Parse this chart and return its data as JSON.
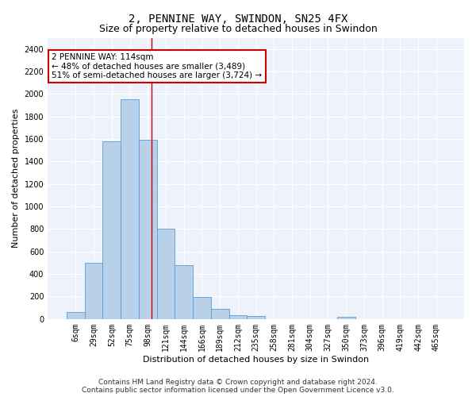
{
  "title": "2, PENNINE WAY, SWINDON, SN25 4FX",
  "subtitle": "Size of property relative to detached houses in Swindon",
  "xlabel": "Distribution of detached houses by size in Swindon",
  "ylabel": "Number of detached properties",
  "categories": [
    "6sqm",
    "29sqm",
    "52sqm",
    "75sqm",
    "98sqm",
    "121sqm",
    "144sqm",
    "166sqm",
    "189sqm",
    "212sqm",
    "235sqm",
    "258sqm",
    "281sqm",
    "304sqm",
    "327sqm",
    "350sqm",
    "373sqm",
    "396sqm",
    "419sqm",
    "442sqm",
    "465sqm"
  ],
  "values": [
    60,
    500,
    1580,
    1950,
    1590,
    800,
    480,
    195,
    90,
    35,
    25,
    0,
    0,
    0,
    0,
    20,
    0,
    0,
    0,
    0,
    0
  ],
  "bar_color": "#b8d0e8",
  "bar_edge_color": "#5b9bd5",
  "vline_pos": 4.5,
  "vline_color": "#cc0000",
  "annotation_text": "2 PENNINE WAY: 114sqm\n← 48% of detached houses are smaller (3,489)\n51% of semi-detached houses are larger (3,724) →",
  "annotation_box_color": "#ffffff",
  "annotation_box_edge": "#cc0000",
  "ylim": [
    0,
    2500
  ],
  "yticks": [
    0,
    200,
    400,
    600,
    800,
    1000,
    1200,
    1400,
    1600,
    1800,
    2000,
    2200,
    2400
  ],
  "footer1": "Contains HM Land Registry data © Crown copyright and database right 2024.",
  "footer2": "Contains public sector information licensed under the Open Government Licence v3.0.",
  "plot_bg_color": "#eef2fa",
  "title_fontsize": 10,
  "subtitle_fontsize": 9,
  "axis_label_fontsize": 8,
  "tick_fontsize": 7,
  "annotation_fontsize": 7.5,
  "footer_fontsize": 6.5
}
